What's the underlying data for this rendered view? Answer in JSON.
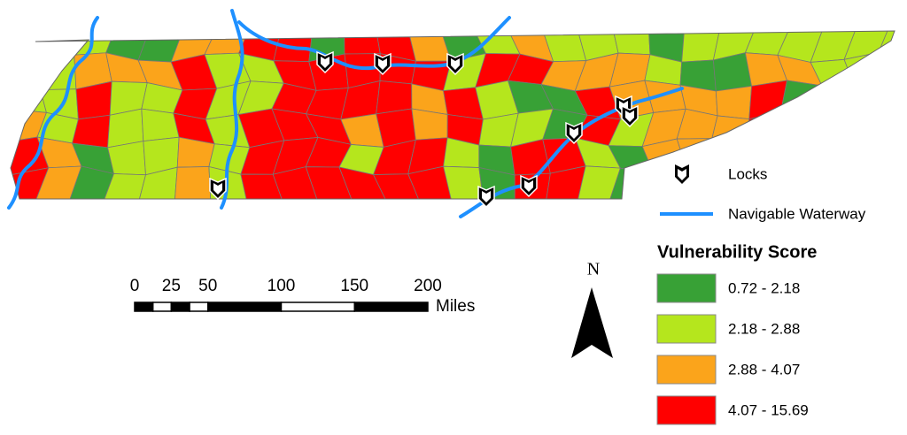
{
  "legend": {
    "locks": "Locks",
    "waterway": "Navigable Waterway",
    "title": "Vulnerability Score",
    "classes": [
      {
        "label": "0.72 - 2.18",
        "color": "#38a136"
      },
      {
        "label": "2.18 - 2.88",
        "color": "#b5e61d"
      },
      {
        "label": "2.88 - 4.07",
        "color": "#fba41b"
      },
      {
        "label": "4.07 - 15.69",
        "color": "#ff0000"
      }
    ]
  },
  "scale_bar": {
    "ticks": [
      0,
      25,
      50,
      100,
      150,
      200
    ],
    "unit": "Miles"
  },
  "north_arrow": "N"
}
